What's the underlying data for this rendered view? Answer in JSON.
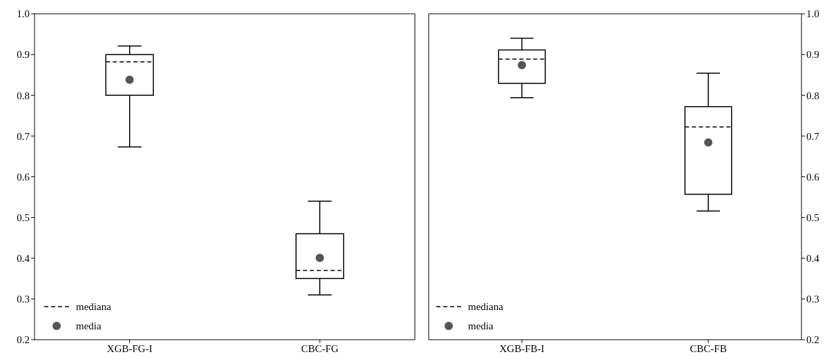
{
  "chart_data": [
    {
      "type": "box",
      "categories": [
        "XGB-FG-I",
        "CBC-FG"
      ],
      "ylim": [
        0.2,
        1.0
      ],
      "yticks": [
        0.2,
        0.3,
        0.4,
        0.5,
        0.6,
        0.7,
        0.8,
        0.9,
        {
          "value": 1.0,
          "label": "1.0"
        }
      ],
      "grid": false,
      "legend": "bottom left",
      "series": [
        {
          "name": "mediana",
          "color": "#000000",
          "line_style": "dashed",
          "boxes": [
            {
              "low": 0.673,
              "q1": 0.8,
              "median": 0.882,
              "q3": 0.9,
              "high": 0.921
            },
            {
              "low": 0.31,
              "q1": 0.35,
              "median": 0.37,
              "q3": 0.46,
              "high": 0.54
            }
          ]
        },
        {
          "type": "scatter",
          "name": "media",
          "color": "#555555",
          "marker": "circle",
          "x": [
            "XGB-FG-I",
            "CBC-FG"
          ],
          "values": [
            0.838,
            0.401
          ]
        }
      ]
    },
    {
      "type": "box",
      "categories": [
        "XGB-FB-I",
        "CBC-FB"
      ],
      "ylim": [
        0.2,
        1.0
      ],
      "yticks": [
        0.2,
        0.3,
        0.4,
        0.5,
        0.6,
        0.7,
        0.8,
        0.9,
        {
          "value": 1.0,
          "label": "1.0"
        }
      ],
      "grid": false,
      "legend": "bottom left",
      "series": [
        {
          "name": "mediana",
          "color": "#000000",
          "line_style": "dashed",
          "boxes": [
            {
              "low": 0.794,
              "q1": 0.829,
              "median": 0.889,
              "q3": 0.911,
              "high": 0.94
            },
            {
              "low": 0.516,
              "q1": 0.557,
              "median": 0.722,
              "q3": 0.772,
              "high": 0.854
            }
          ]
        },
        {
          "type": "scatter",
          "name": "media",
          "color": "#555555",
          "marker": "circle",
          "x": [
            "XGB-FB-I",
            "CBC-FB"
          ],
          "values": [
            0.874,
            0.684
          ]
        }
      ]
    }
  ]
}
